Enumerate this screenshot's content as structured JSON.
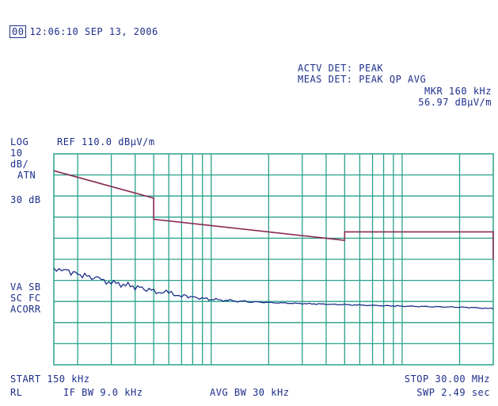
{
  "header": {
    "badge": "00",
    "datetime": "12:06:10 SEP 13, 2006"
  },
  "detectors": {
    "actv_det": "ACTV DET: PEAK",
    "meas_det": "MEAS DET: PEAK QP AVG"
  },
  "marker": {
    "freq": "MKR 160 kHz",
    "level": "56.97 dBµV/m"
  },
  "scale": {
    "log": "LOG",
    "div": "10",
    "unit": "dB/",
    "atn": "ATN",
    "atn_val": "30 dB",
    "ref": "REF 110.0 dBµV/m"
  },
  "side_labels": {
    "va": "VA SB",
    "sc": "SC FC",
    "corr": "ACORR"
  },
  "footer": {
    "start": "START 150 kHz",
    "stop": "STOP 30.00 MHz",
    "rl": "RL",
    "if_bw": "IF BW 9.0 kHz",
    "avg_bw": "AVG BW 30 kHz",
    "swp": "SWP 2.49 sec"
  },
  "chart_data": {
    "type": "line",
    "x_scale": "log",
    "xlim_mhz": [
      0.15,
      30.0
    ],
    "ylim_dbuv_m": [
      10,
      110
    ],
    "grid": true,
    "series": [
      {
        "x_mhz": [
          0.15,
          0.5,
          0.5,
          5.0,
          5.0,
          30.0,
          30.0
        ],
        "y_dbuv_m": [
          102,
          89,
          79,
          69,
          73,
          73,
          60
        ],
        "color": "#8a2a55"
      },
      {
        "x_mhz": [
          0.15,
          0.17,
          0.2,
          0.25,
          0.3,
          0.4,
          0.5,
          0.6,
          0.7,
          0.8,
          1.0,
          1.5,
          2.0,
          3.0,
          5.0,
          8.0,
          10.0,
          15.0,
          20.0,
          25.0,
          30.0
        ],
        "y_dbuv_m": [
          56,
          55,
          53,
          51,
          49,
          47,
          45,
          44,
          43,
          42,
          41,
          40,
          39.5,
          39,
          38.5,
          38,
          37.8,
          37.5,
          37.3,
          37,
          36.5
        ],
        "color": "#1d2f8a"
      }
    ]
  }
}
